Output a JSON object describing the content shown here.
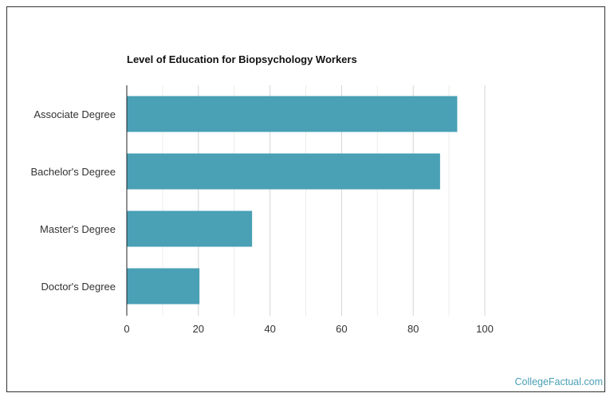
{
  "chart_data": {
    "type": "bar",
    "orientation": "horizontal",
    "title": "Level of Education for Biopsychology Workers",
    "categories": [
      "Associate Degree",
      "Bachelor's Degree",
      "Master's Degree",
      "Doctor's Degree"
    ],
    "values": [
      92.3,
      87.5,
      35,
      20.3
    ],
    "xlim": [
      0,
      100
    ],
    "xticks": [
      0,
      20,
      40,
      60,
      80,
      100
    ],
    "grid": true,
    "bar_color": "#4aa0b5",
    "xlabel": "",
    "ylabel": ""
  },
  "footer": {
    "watermark": "CollegeFactual.com"
  }
}
